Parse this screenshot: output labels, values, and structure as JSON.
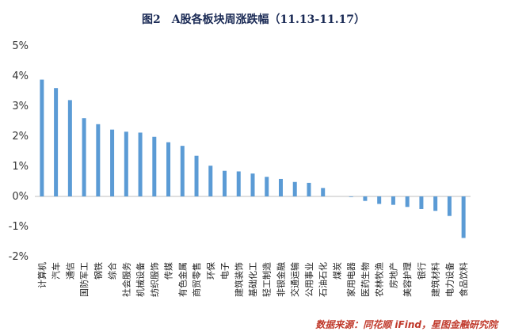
{
  "chart_data": {
    "type": "bar",
    "title": "图2　A股各板块周涨跌幅（11.13-11.17）",
    "xlabel": "",
    "ylabel": "",
    "ylim": [
      -2,
      5
    ],
    "yticks": [
      "-2%",
      "-1%",
      "0%",
      "1%",
      "2%",
      "3%",
      "4%",
      "5%"
    ],
    "grid": false,
    "legend": "none",
    "categories": [
      "计算机",
      "汽车",
      "通信",
      "国防军工",
      "钢铁",
      "综合",
      "社会服务",
      "机械设备",
      "纺织服饰",
      "传媒",
      "有色金属",
      "商贸零售",
      "环保",
      "电子",
      "建筑装饰",
      "基础化工",
      "轻工制造",
      "非银金融",
      "交通运输",
      "公用事业",
      "石油石化",
      "煤炭",
      "家用电器",
      "医药生物",
      "农林牧渔",
      "房地产",
      "美容护理",
      "银行",
      "建筑材料",
      "电力设备",
      "食品饮料"
    ],
    "values": [
      3.88,
      3.6,
      3.2,
      2.6,
      2.4,
      2.22,
      2.15,
      2.12,
      1.98,
      1.8,
      1.68,
      1.35,
      1.02,
      0.85,
      0.83,
      0.76,
      0.65,
      0.58,
      0.48,
      0.45,
      0.28,
      0.0,
      -0.02,
      -0.15,
      -0.25,
      -0.28,
      -0.35,
      -0.42,
      -0.48,
      -0.65,
      -1.38
    ],
    "bar_color": "#5b9bd5",
    "source": "数据来源：同花顺 iFind，星图金融研究院"
  }
}
